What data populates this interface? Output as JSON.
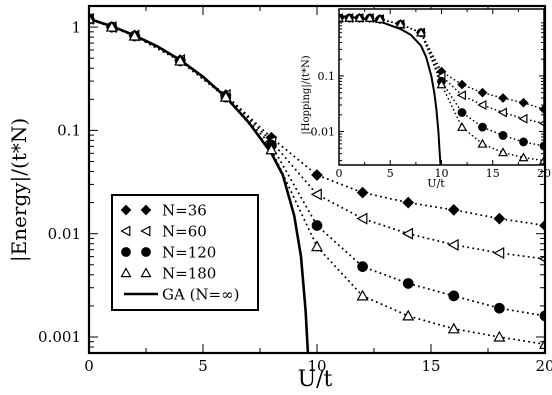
{
  "chart_data": [
    {
      "type": "scatter",
      "panel": "main",
      "xlabel": "U/t",
      "ylabel": "|Energy|/(t*N)",
      "xlim": [
        0,
        20
      ],
      "ylim": [
        0.0007,
        1.6
      ],
      "yscale": "log",
      "xticks": [
        0,
        5,
        10,
        15,
        20
      ],
      "yticks": [
        0.001,
        0.01,
        0.1,
        1
      ],
      "ytick_labels": [
        "0.001",
        "0.01",
        "0.1",
        "1"
      ],
      "legend_position": "lower-left",
      "series": [
        {
          "name": "N=36",
          "marker": "diamond-filled",
          "dotted": true,
          "x": [
            0,
            1,
            2,
            4,
            6,
            8,
            10,
            12,
            14,
            16,
            18,
            20
          ],
          "y": [
            1.2,
            1.0,
            0.83,
            0.48,
            0.22,
            0.085,
            0.037,
            0.025,
            0.02,
            0.017,
            0.014,
            0.012
          ]
        },
        {
          "name": "N=60",
          "marker": "triangle-left-open",
          "dotted": true,
          "x": [
            0,
            1,
            2,
            4,
            6,
            8,
            10,
            12,
            14,
            16,
            18,
            20
          ],
          "y": [
            1.2,
            1.0,
            0.83,
            0.48,
            0.22,
            0.078,
            0.024,
            0.014,
            0.01,
            0.0078,
            0.0065,
            0.0057
          ]
        },
        {
          "name": "N=120",
          "marker": "circle-filled",
          "dotted": true,
          "x": [
            0,
            1,
            2,
            4,
            6,
            8,
            10,
            12,
            14,
            16,
            18,
            20
          ],
          "y": [
            1.2,
            1.0,
            0.82,
            0.47,
            0.21,
            0.072,
            0.012,
            0.0048,
            0.0033,
            0.0025,
            0.0019,
            0.0016
          ]
        },
        {
          "name": "N=180",
          "marker": "triangle-up-open",
          "dotted": true,
          "x": [
            0,
            1,
            2,
            4,
            6,
            8,
            10,
            12,
            14,
            16,
            18,
            20
          ],
          "y": [
            1.2,
            1.0,
            0.82,
            0.47,
            0.21,
            0.065,
            0.0075,
            0.0025,
            0.0016,
            0.0012,
            0.001,
            0.00085
          ]
        },
        {
          "name": "GA (N=∞)",
          "marker": "none",
          "line": "solid",
          "x": [
            0,
            1,
            2,
            3,
            4,
            5,
            6,
            7,
            8,
            8.5,
            9,
            9.3,
            9.5,
            9.6
          ],
          "y": [
            1.2,
            1.02,
            0.83,
            0.65,
            0.48,
            0.33,
            0.21,
            0.12,
            0.06,
            0.037,
            0.015,
            0.006,
            0.0018,
            0.0007
          ]
        }
      ]
    },
    {
      "type": "scatter",
      "panel": "inset",
      "xlabel": "U/t",
      "ylabel": "|Hopping|/(t*N)",
      "xlim": [
        0,
        20
      ],
      "ylim": [
        0.0025,
        1.6
      ],
      "yscale": "log",
      "xticks": [
        0,
        5,
        10,
        15,
        20
      ],
      "xtick_labels": [
        "0",
        "5",
        "10",
        "15",
        "20"
      ],
      "yticks": [
        0.01,
        0.1
      ],
      "ytick_labels": [
        "0.01",
        "0.1"
      ],
      "series": [
        {
          "name": "N=36",
          "marker": "diamond-filled",
          "dotted": true,
          "x": [
            0,
            1,
            2,
            3,
            4,
            6,
            8,
            10,
            12,
            14,
            16,
            18,
            20
          ],
          "y": [
            1.1,
            1.1,
            1.1,
            1.1,
            1.05,
            0.85,
            0.6,
            0.12,
            0.07,
            0.05,
            0.04,
            0.033,
            0.025
          ]
        },
        {
          "name": "N=60",
          "marker": "triangle-left-open",
          "dotted": true,
          "x": [
            0,
            1,
            2,
            3,
            4,
            6,
            8,
            10,
            12,
            14,
            16,
            18,
            20
          ],
          "y": [
            1.1,
            1.1,
            1.1,
            1.1,
            1.05,
            0.85,
            0.6,
            0.1,
            0.045,
            0.03,
            0.022,
            0.017,
            0.014
          ]
        },
        {
          "name": "N=120",
          "marker": "circle-filled",
          "dotted": true,
          "x": [
            0,
            1,
            2,
            3,
            4,
            6,
            8,
            10,
            12,
            14,
            16,
            18,
            20
          ],
          "y": [
            1.1,
            1.1,
            1.1,
            1.1,
            1.05,
            0.85,
            0.6,
            0.08,
            0.022,
            0.012,
            0.0085,
            0.0065,
            0.0055
          ]
        },
        {
          "name": "N=180",
          "marker": "triangle-up-open",
          "dotted": true,
          "x": [
            0,
            1,
            2,
            3,
            4,
            6,
            8,
            10,
            12,
            14,
            16,
            18,
            20
          ],
          "y": [
            1.1,
            1.1,
            1.1,
            1.1,
            1.05,
            0.85,
            0.6,
            0.07,
            0.012,
            0.006,
            0.0042,
            0.0034,
            0.003
          ]
        },
        {
          "name": "GA (N=∞)",
          "marker": "none",
          "line": "solid",
          "x": [
            0,
            2,
            4,
            6,
            7,
            8,
            8.5,
            9,
            9.3,
            9.5,
            9.7,
            9.8,
            9.9
          ],
          "y": [
            1.2,
            1.1,
            0.95,
            0.7,
            0.55,
            0.35,
            0.22,
            0.1,
            0.05,
            0.025,
            0.01,
            0.005,
            0.0025
          ]
        }
      ]
    }
  ]
}
